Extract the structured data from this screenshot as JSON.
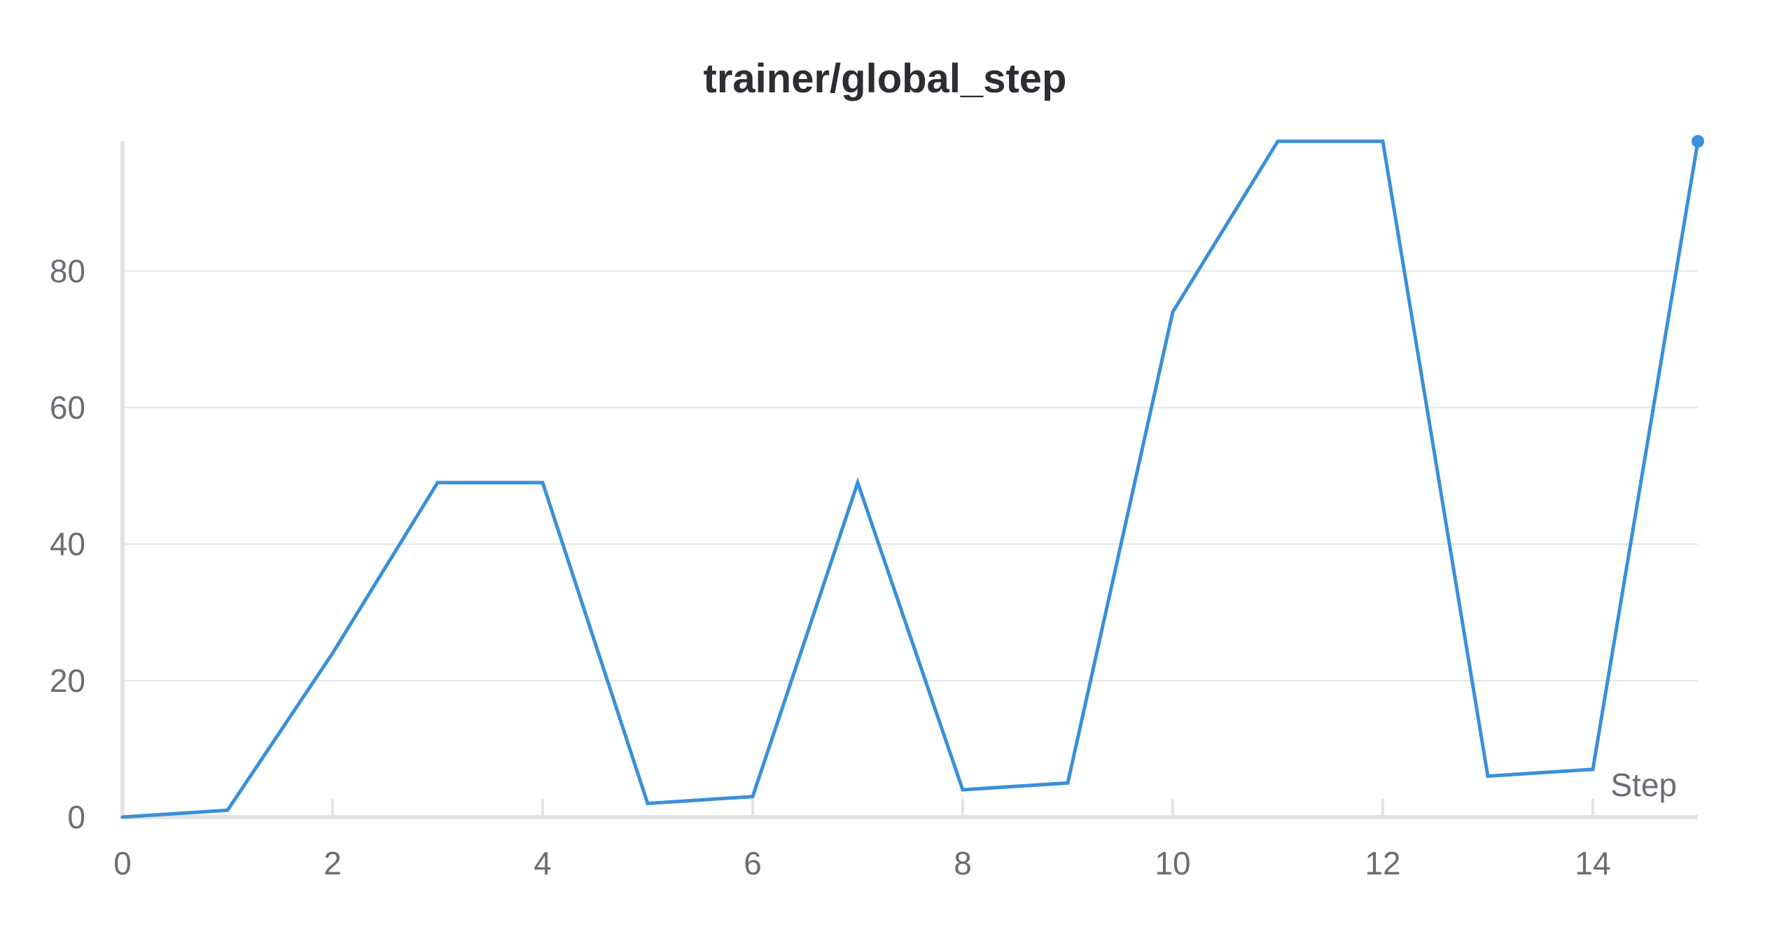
{
  "chart_data": {
    "type": "line",
    "title": "trainer/global_step",
    "xlabel": "Step",
    "ylabel": "",
    "xlim": [
      0,
      15
    ],
    "ylim": [
      0,
      99
    ],
    "x_ticks": [
      0,
      2,
      4,
      6,
      8,
      10,
      12,
      14
    ],
    "y_ticks": [
      0,
      20,
      40,
      60,
      80
    ],
    "grid": true,
    "legend": "none",
    "series": [
      {
        "color": "#3a8fd9",
        "x": [
          0,
          0.5,
          1,
          2,
          3,
          4,
          5,
          6,
          7,
          8,
          9,
          10,
          11,
          12,
          13,
          14,
          15
        ],
        "y": [
          0,
          0.5,
          1,
          24,
          49,
          49,
          2,
          3,
          49,
          4,
          5,
          74,
          99,
          99,
          6,
          7,
          99
        ]
      }
    ]
  }
}
